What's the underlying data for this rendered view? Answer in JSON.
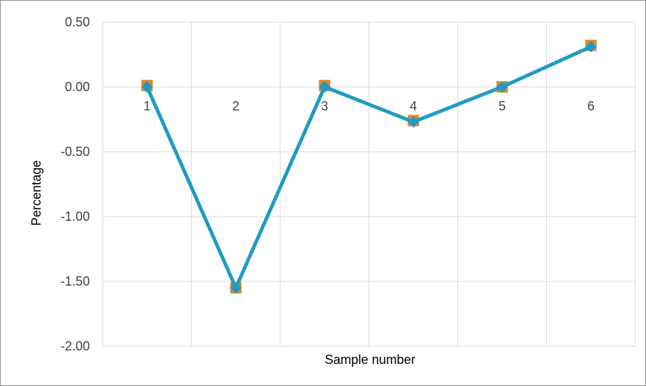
{
  "chart_data": {
    "type": "line",
    "title": "",
    "xlabel": "Sample number",
    "ylabel": "Percentage",
    "categories": [
      "1",
      "2",
      "3",
      "4",
      "5",
      "6"
    ],
    "ylim": [
      -2.0,
      0.5
    ],
    "yticks": [
      "0.50",
      "0.00",
      "-0.50",
      "-1.00",
      "-1.50",
      "-2.00"
    ],
    "grid": true,
    "legend": "none",
    "series": [
      {
        "color": "#e0892b",
        "marker": "square",
        "line": false,
        "values": [
          0.01,
          -1.55,
          0.01,
          -0.26,
          0.0,
          0.32
        ]
      },
      {
        "color": "#1f9bc4",
        "marker": "diamond",
        "line": true,
        "values": [
          0.0,
          -1.55,
          0.0,
          -0.27,
          0.0,
          0.31
        ]
      }
    ]
  }
}
